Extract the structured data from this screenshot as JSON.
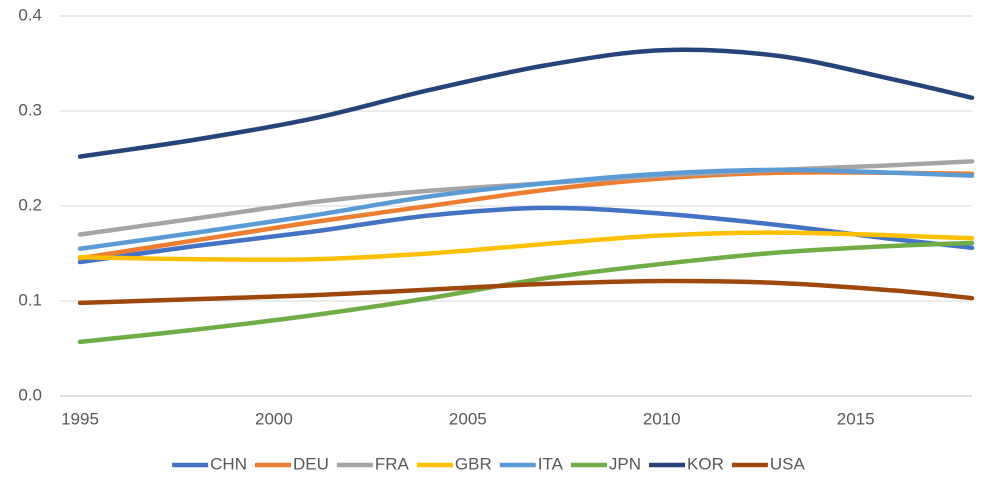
{
  "chart_data": {
    "type": "line",
    "x": [
      1995,
      1998,
      2001,
      2004,
      2007,
      2010,
      2013,
      2016,
      2018
    ],
    "xlim": [
      1995,
      2018
    ],
    "xticks": [
      1995,
      2000,
      2005,
      2010,
      2015
    ],
    "ylim": [
      0,
      0.4
    ],
    "yticks": [
      {
        "value": 0,
        "label": "0.0"
      },
      0.1,
      0.2,
      0.3,
      0.4
    ],
    "grid": true,
    "smooth": true,
    "legend": "bottom",
    "series": [
      {
        "name": "CHN",
        "color": "#4472c4",
        "values": [
          0.141,
          0.158,
          0.173,
          0.19,
          0.198,
          0.192,
          0.18,
          0.165,
          0.156
        ]
      },
      {
        "name": "DEU",
        "color": "#ed7d31",
        "values": [
          0.145,
          0.164,
          0.183,
          0.2,
          0.217,
          0.229,
          0.235,
          0.235,
          0.234
        ]
      },
      {
        "name": "FRA",
        "color": "#a5a5a5",
        "values": [
          0.17,
          0.187,
          0.204,
          0.216,
          0.224,
          0.232,
          0.238,
          0.243,
          0.247
        ]
      },
      {
        "name": "GBR",
        "color": "#ffc000",
        "values": [
          0.146,
          0.144,
          0.144,
          0.15,
          0.16,
          0.169,
          0.172,
          0.169,
          0.166
        ]
      },
      {
        "name": "ITA",
        "color": "#5b9bd5",
        "values": [
          0.155,
          0.172,
          0.19,
          0.21,
          0.224,
          0.234,
          0.238,
          0.235,
          0.232
        ]
      },
      {
        "name": "JPN",
        "color": "#70ad47",
        "values": [
          0.057,
          0.07,
          0.085,
          0.103,
          0.124,
          0.139,
          0.151,
          0.158,
          0.161
        ]
      },
      {
        "name": "KOR",
        "color": "#264478",
        "values": [
          0.252,
          0.27,
          0.292,
          0.322,
          0.348,
          0.364,
          0.358,
          0.333,
          0.314
        ]
      },
      {
        "name": "USA",
        "color": "#9e480e",
        "values": [
          0.098,
          0.102,
          0.106,
          0.112,
          0.118,
          0.121,
          0.119,
          0.111,
          0.103
        ]
      }
    ]
  }
}
